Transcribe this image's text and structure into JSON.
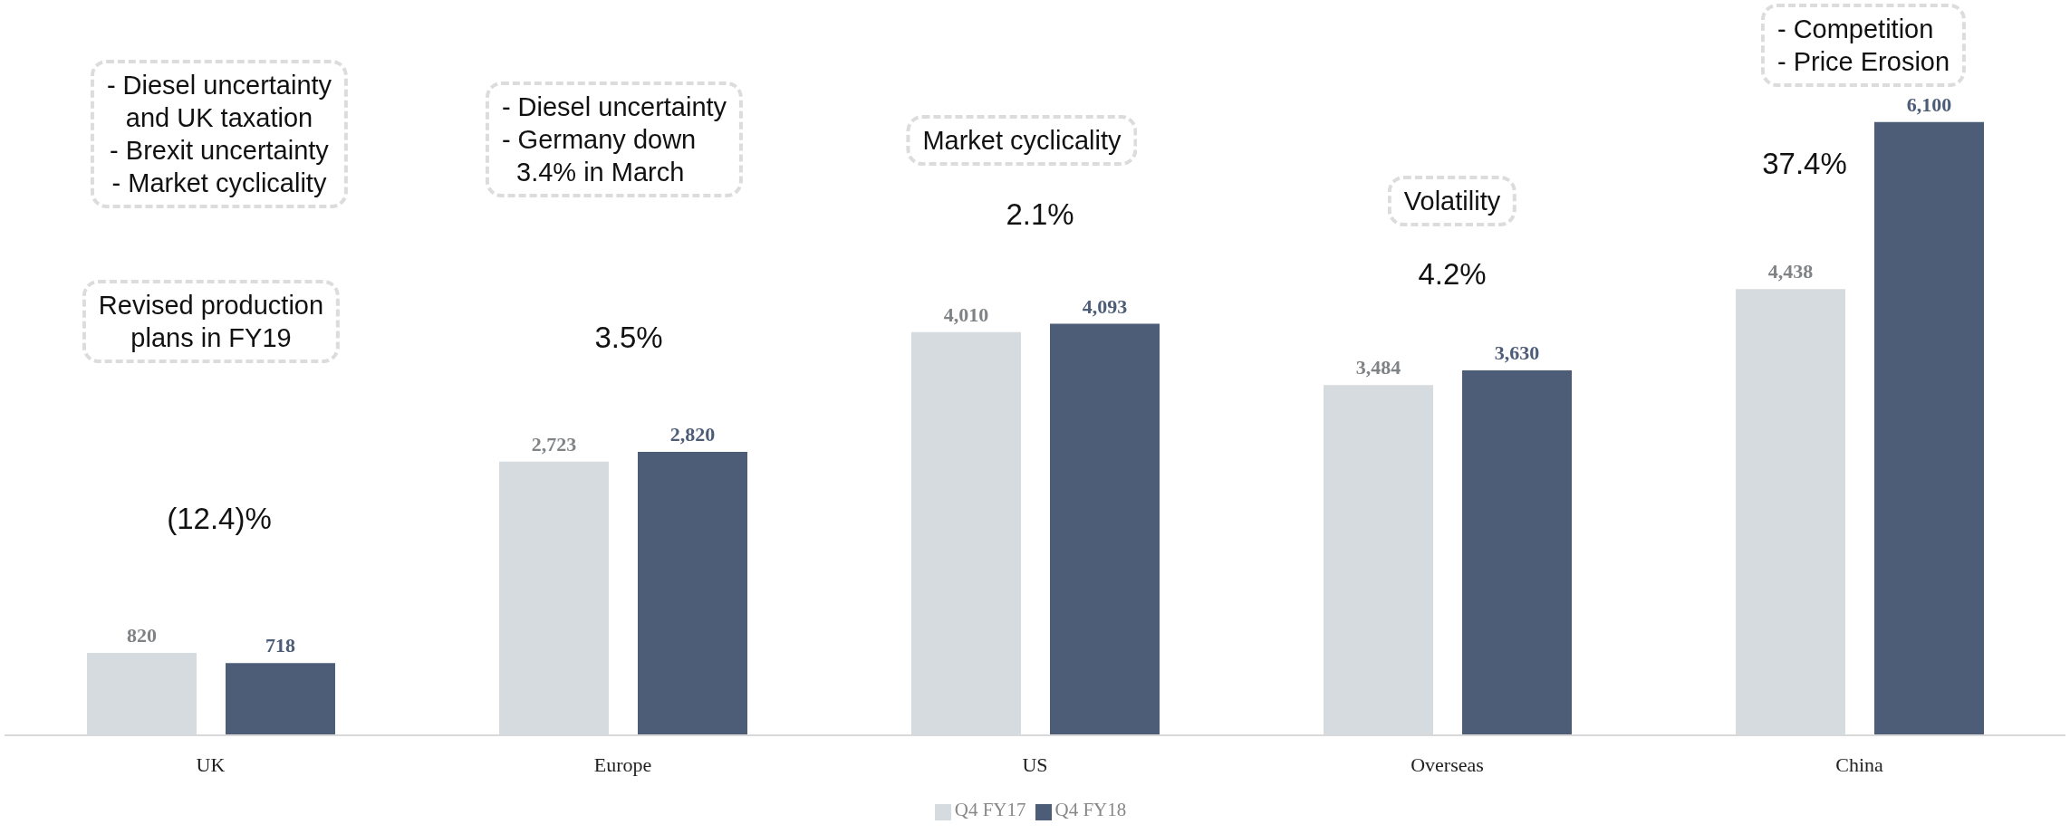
{
  "chart_data": {
    "type": "bar",
    "categories": [
      "UK",
      "Europe",
      "US",
      "Overseas",
      "China"
    ],
    "series": [
      {
        "name": "Q4 FY17",
        "color": "#d6dbdf",
        "values": [
          820,
          2723,
          4010,
          3484,
          4438
        ],
        "value_labels": [
          "820",
          "2,723",
          "4,010",
          "3,484",
          "4,438"
        ]
      },
      {
        "name": "Q4 FY18",
        "color": "#4d5d78",
        "values": [
          718,
          2820,
          4093,
          3630,
          6100
        ],
        "value_labels": [
          "718",
          "2,820",
          "4,093",
          "3,630",
          "6,100"
        ]
      }
    ],
    "legend": "bottom",
    "grid": false,
    "annotations": [
      "- Diesel uncertainty\nand UK taxation\n- Brexit uncertainty\n- Market cyclicality",
      "Revised production\nplans in FY19",
      "(12.4)%",
      "- Diesel uncertainty\n- Germany down\n  3.4% in March",
      "3.5%",
      "Market cyclicality",
      "2.1%",
      "Volatility",
      "4.2%",
      "- Competition\n- Price Erosion",
      "37.4%"
    ]
  }
}
